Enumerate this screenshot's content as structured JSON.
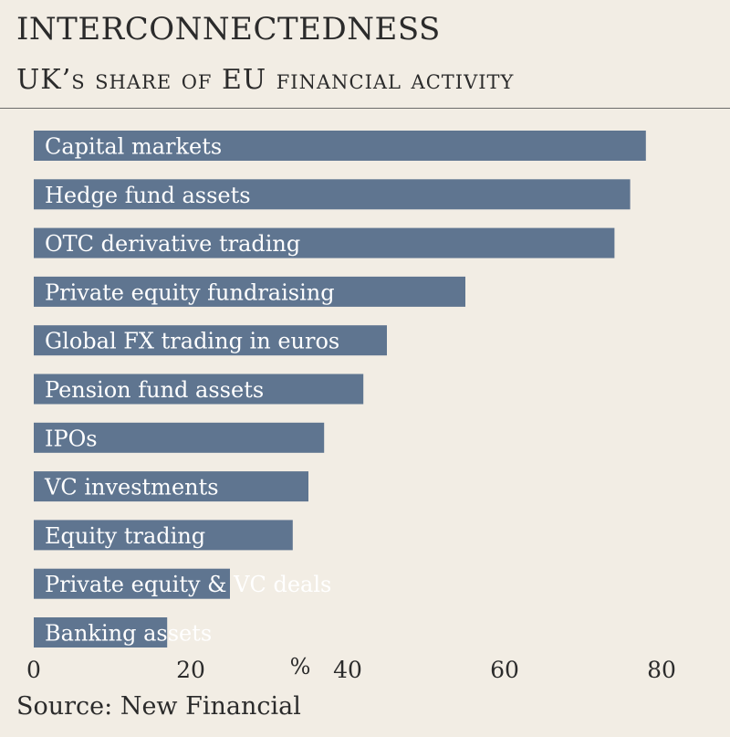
{
  "title": "INTERCONNECTEDNESS",
  "subtitle": "UK’s share of EU financial activity",
  "source": "Source: New Financial",
  "colors": {
    "bar": "#5f7590",
    "background": "#f2ede4",
    "text": "#2b2b2b"
  },
  "chart_data": {
    "type": "bar",
    "orientation": "horizontal",
    "categories": [
      "Capital markets",
      "Hedge fund assets",
      "OTC derivative trading",
      "Private equity fundraising",
      "Global FX trading in euros",
      "Pension fund assets",
      "IPOs",
      "VC investments",
      "Equity trading",
      "Private equity & VC deals",
      "Banking assets"
    ],
    "values": [
      78,
      76,
      74,
      55,
      45,
      42,
      37,
      35,
      33,
      25,
      17
    ],
    "xlabel": "%",
    "xlim": [
      0,
      80
    ],
    "xticks": [
      "0",
      "20",
      "40",
      "60",
      "80"
    ],
    "grid": false
  }
}
